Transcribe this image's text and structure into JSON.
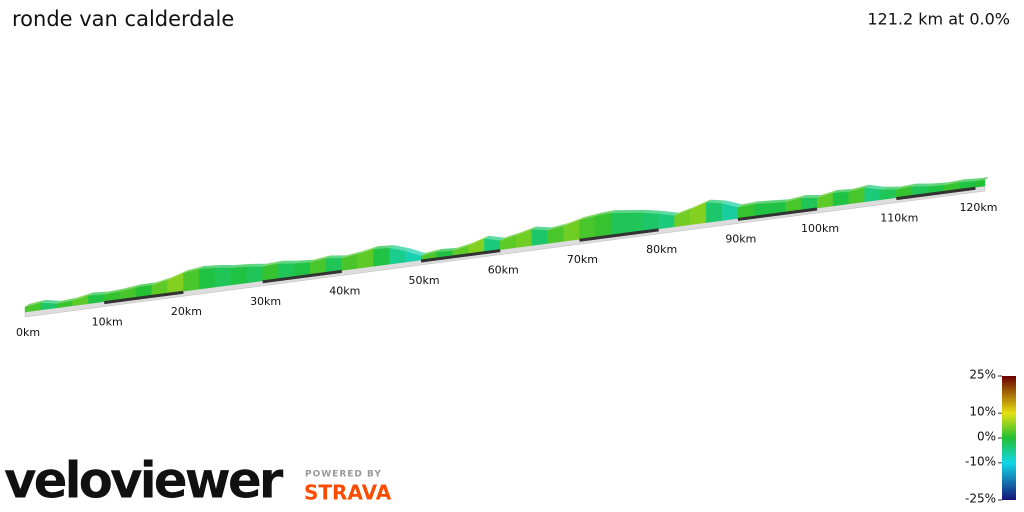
{
  "chart_data": {
    "type": "gradient-profile",
    "title": "ronde van calderdale",
    "summary": "121.2 km at 0.0%",
    "x": [
      0,
      2,
      4,
      6,
      8,
      10,
      12,
      14,
      16,
      18,
      20,
      22,
      24,
      26,
      28,
      30,
      32,
      34,
      36,
      38,
      40,
      42,
      44,
      46,
      48,
      50,
      52,
      54,
      56,
      58,
      60,
      62,
      64,
      66,
      68,
      70,
      72,
      74,
      76,
      78,
      80,
      82,
      84,
      86,
      88,
      90,
      92,
      94,
      96,
      98,
      100,
      102,
      104,
      106,
      108,
      110,
      112,
      114,
      116,
      118,
      120
    ],
    "values": [
      2,
      -3,
      1,
      3,
      -1,
      1,
      2,
      0,
      3,
      5,
      2,
      -1,
      -2,
      -1,
      -2,
      1,
      -2,
      -1,
      2,
      -2,
      2,
      3,
      -1,
      -5,
      -7,
      2,
      -1,
      3,
      5,
      -4,
      3,
      4,
      -3,
      2,
      4,
      2,
      1,
      -2,
      -2,
      -3,
      -4,
      4,
      5,
      -3,
      -6,
      1,
      -1,
      -1,
      2,
      -2,
      3,
      -1,
      2,
      -4,
      -2,
      1,
      -2,
      -1,
      1,
      -1,
      0
    ],
    "xlim": [
      0,
      121.2
    ],
    "xticks": [
      {
        "value": 0,
        "label": "0km"
      },
      {
        "value": 10,
        "label": "10km"
      },
      {
        "value": 20,
        "label": "20km"
      },
      {
        "value": 30,
        "label": "30km"
      },
      {
        "value": 40,
        "label": "40km"
      },
      {
        "value": 50,
        "label": "50km"
      },
      {
        "value": 60,
        "label": "60km"
      },
      {
        "value": 70,
        "label": "70km"
      },
      {
        "value": 80,
        "label": "80km"
      },
      {
        "value": 90,
        "label": "90km"
      },
      {
        "value": 100,
        "label": "100km"
      },
      {
        "value": 110,
        "label": "110km"
      },
      {
        "value": 120,
        "label": "120km"
      }
    ],
    "colorbar": {
      "ylim": [
        -25,
        25
      ],
      "yticks": [
        {
          "value": -25,
          "label": "-25%"
        },
        {
          "value": -10,
          "label": "-10%"
        },
        {
          "value": 0,
          "label": "0%"
        },
        {
          "value": 10,
          "label": "10%"
        },
        {
          "value": 25,
          "label": "25%"
        }
      ],
      "colors": [
        "#14147a",
        "#12d8e8",
        "#22c032",
        "#e6e010",
        "#6a0000"
      ]
    },
    "branding": {
      "logo": "veloviewer",
      "powered": "POWERED BY",
      "strava": "STRAVA"
    }
  }
}
